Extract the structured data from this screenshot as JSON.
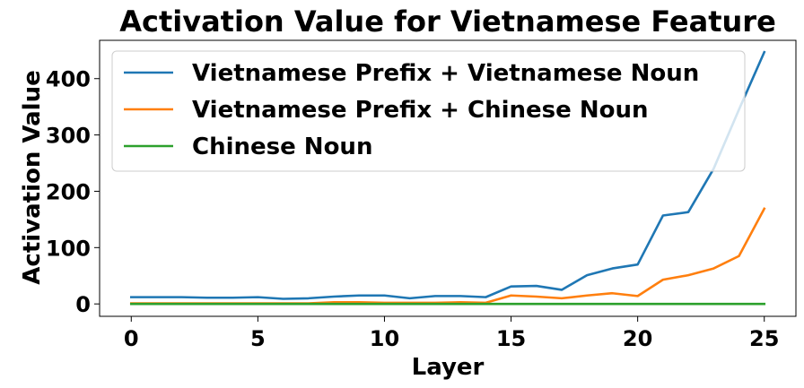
{
  "chart_data": {
    "type": "line",
    "title": "Activation Value for Vietnamese Feature",
    "xlabel": "Layer",
    "ylabel": "Activation Value",
    "xlim": [
      -1.25,
      26.25
    ],
    "ylim": [
      -22,
      468
    ],
    "xticks": [
      0,
      5,
      10,
      15,
      20,
      25
    ],
    "yticks": [
      0,
      100,
      200,
      300,
      400
    ],
    "grid": false,
    "legend_position": "top-left",
    "x": [
      0,
      1,
      2,
      3,
      4,
      5,
      6,
      7,
      8,
      9,
      10,
      11,
      12,
      13,
      14,
      15,
      16,
      17,
      18,
      19,
      20,
      21,
      22,
      23,
      24,
      25
    ],
    "series": [
      {
        "name": "Vietnamese Prefix + Vietnamese Noun",
        "color": "#1f77b4",
        "values": [
          12,
          12,
          12,
          11,
          11,
          12,
          9,
          10,
          13,
          15,
          15,
          10,
          14,
          14,
          12,
          31,
          32,
          25,
          51,
          63,
          70,
          157,
          163,
          240,
          345,
          447
        ]
      },
      {
        "name": "Vietnamese Prefix + Chinese Noun",
        "color": "#ff7f0e",
        "values": [
          1,
          1,
          1,
          1,
          1,
          1,
          1,
          1,
          3,
          3,
          2,
          2,
          2,
          3,
          2,
          15,
          13,
          10,
          15,
          19,
          14,
          43,
          51,
          63,
          85,
          169
        ]
      },
      {
        "name": "Chinese Noun",
        "color": "#2ca02c",
        "values": [
          0,
          0,
          0,
          0,
          0,
          0,
          0,
          0,
          0,
          0,
          0,
          0,
          0,
          0,
          0,
          0,
          0,
          0,
          0,
          0,
          0,
          0,
          0,
          0,
          0,
          0
        ]
      }
    ]
  }
}
